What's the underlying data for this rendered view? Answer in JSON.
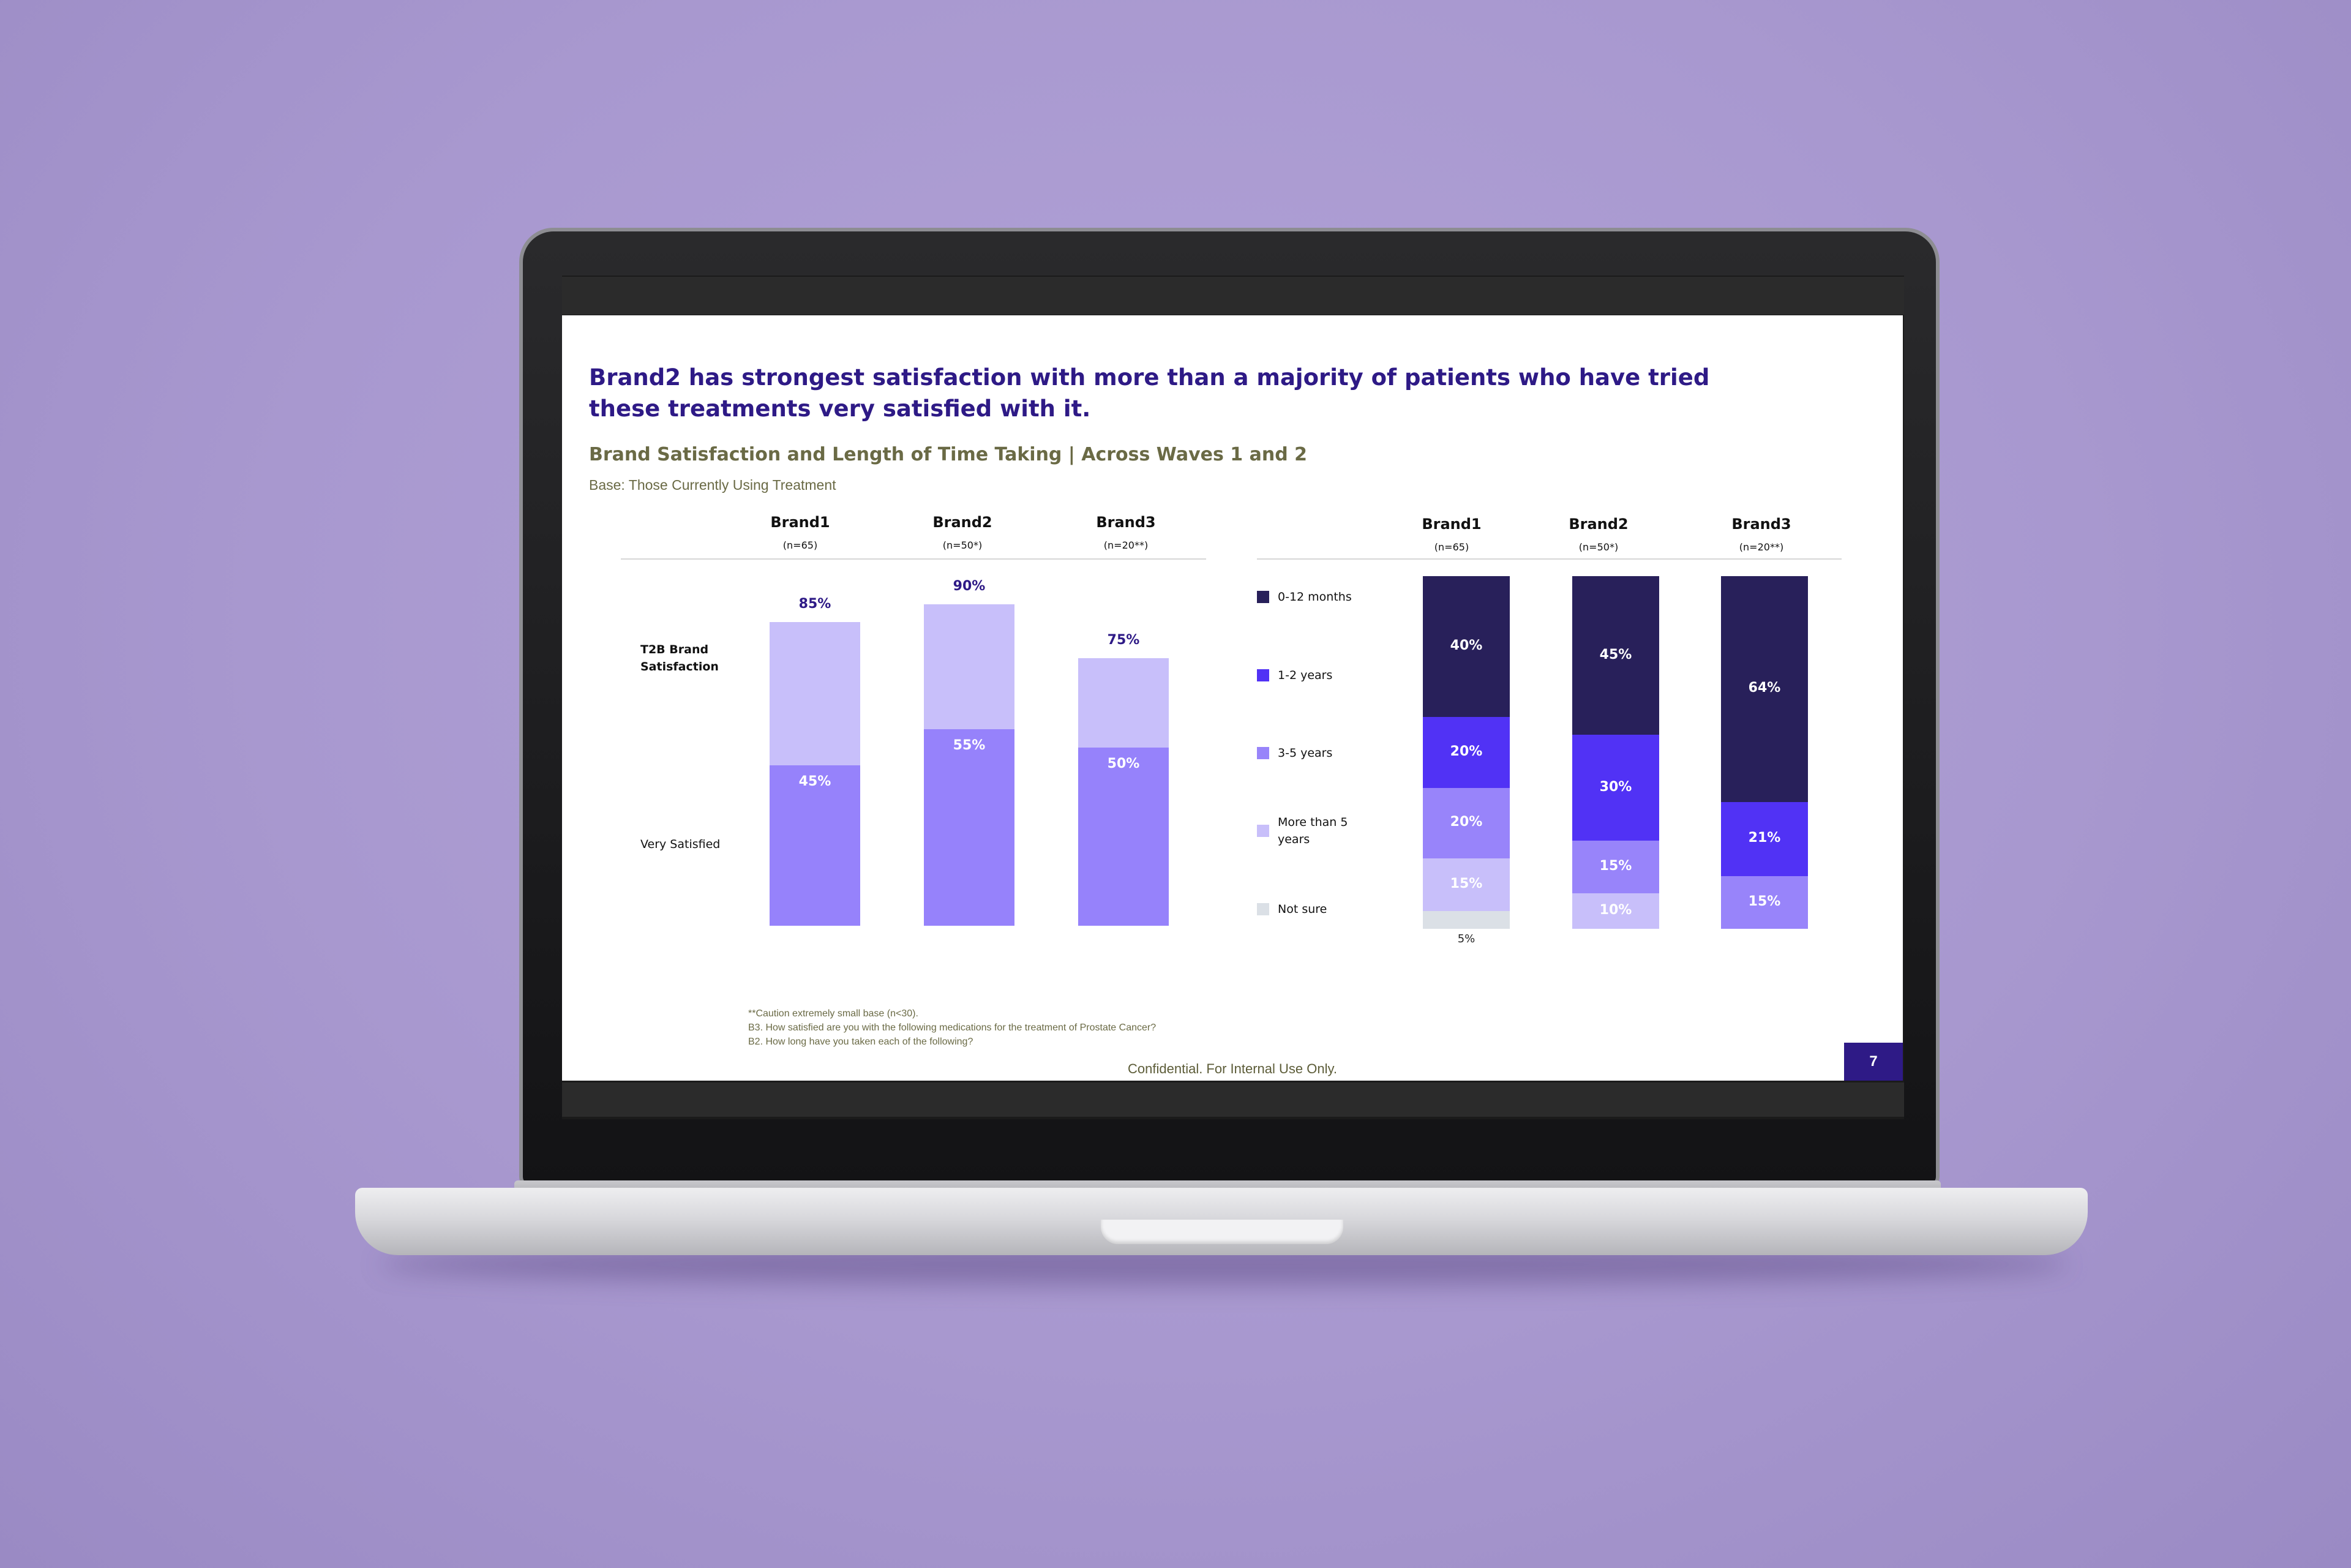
{
  "slide": {
    "title": "Brand2 has strongest satisfaction with more than a majority of patients who have tried these treatments very satisfied with it.",
    "subtitle": "Brand Satisfaction and Length of Time Taking | Across Waves 1 and 2",
    "base": "Base: Those Currently Using Treatment",
    "footnotes": [
      "**Caution extremely small base (n<30).",
      "B3. How satisfied are you with the following medications for the treatment of Prostate Cancer?",
      "B2. How long have you taken each of the following?"
    ],
    "confidential": "Confidential. For Internal Use Only.",
    "page_number": "7"
  },
  "colors": {
    "title": "#2e1a86",
    "subtitle": "#6a6a45",
    "t2b_light": "#c8bffa",
    "very_satisfied": "#9682fb",
    "months_0_12": "#28205a",
    "years_1_2": "#5132f5",
    "years_3_5": "#9884fa",
    "more_than_5": "#c8bffa",
    "not_sure": "#dbe0e6"
  },
  "chart_data": [
    {
      "type": "bar",
      "categories": [
        "Brand1",
        "Brand2",
        "Brand3"
      ],
      "base_sizes": [
        "(n=65)",
        "(n=50*)",
        "(n=20**)"
      ],
      "row_labels": [
        "T2B Brand Satisfaction",
        "Very Satisfied"
      ],
      "series": [
        {
          "name": "T2B Brand Satisfaction",
          "values": [
            85,
            90,
            75
          ]
        },
        {
          "name": "Very Satisfied",
          "values": [
            45,
            55,
            50
          ]
        }
      ],
      "labels": {
        "t2b": [
          "85%",
          "90%",
          "75%"
        ],
        "very": [
          "45%",
          "55%",
          "50%"
        ]
      },
      "ylim": [
        0,
        100
      ]
    },
    {
      "type": "bar",
      "stacked": true,
      "categories": [
        "Brand1",
        "Brand2",
        "Brand3"
      ],
      "base_sizes": [
        "(n=65)",
        "(n=50*)",
        "(n=20**)"
      ],
      "series": [
        {
          "name": "0-12 months",
          "values": [
            40,
            45,
            64
          ],
          "labels": [
            "40%",
            "45%",
            "64%"
          ]
        },
        {
          "name": "1-2 years",
          "values": [
            20,
            30,
            21
          ],
          "labels": [
            "20%",
            "30%",
            "21%"
          ]
        },
        {
          "name": "3-5 years",
          "values": [
            20,
            15,
            15
          ],
          "labels": [
            "20%",
            "15%",
            "15%"
          ]
        },
        {
          "name": "More than 5 years",
          "values": [
            15,
            10,
            0
          ],
          "labels": [
            "15%",
            "10%",
            ""
          ]
        },
        {
          "name": "Not sure",
          "values": [
            5,
            0,
            0
          ],
          "labels": [
            "5%",
            "",
            ""
          ]
        }
      ],
      "legend_position": "left",
      "ylim": [
        0,
        100
      ]
    }
  ]
}
